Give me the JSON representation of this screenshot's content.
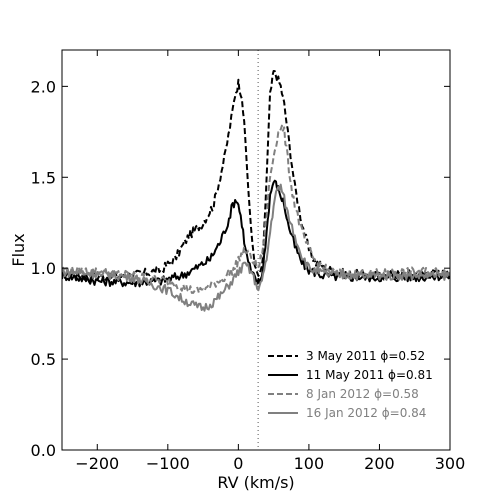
{
  "chart_data": {
    "type": "line",
    "title": "",
    "xlabel": "RV (km/s)",
    "ylabel": "Flux",
    "xlim": [
      -250,
      300
    ],
    "ylim": [
      0.0,
      2.2
    ],
    "xticks": [
      -200,
      -100,
      0,
      100,
      200,
      300
    ],
    "xtick_labels": [
      "−200",
      "−100",
      "0",
      "100",
      "200",
      "300"
    ],
    "yticks": [
      0.0,
      0.5,
      1.0,
      1.5,
      2.0
    ],
    "ytick_labels": [
      "0.0",
      "0.5",
      "1.0",
      "1.5",
      "2.0"
    ],
    "grid": false,
    "legend_position": "lower-right",
    "reference_line": {
      "x": 28,
      "style": "dotted"
    },
    "series": [
      {
        "name": "3 May 2011 ϕ=0.52",
        "color": "#000000",
        "dash": "dashed",
        "x": [
          -250,
          -200,
          -150,
          -110,
          -90,
          -70,
          -50,
          -35,
          -20,
          -10,
          -5,
          0,
          5,
          10,
          18,
          25,
          30,
          35,
          40,
          45,
          50,
          55,
          60,
          65,
          70,
          80,
          90,
          100,
          110,
          130,
          150,
          200,
          250,
          300
        ],
        "y": [
          0.97,
          0.95,
          0.96,
          0.99,
          1.05,
          1.18,
          1.25,
          1.35,
          1.6,
          1.82,
          1.95,
          2.02,
          1.95,
          1.7,
          1.2,
          0.98,
          0.95,
          1.05,
          1.5,
          1.95,
          2.08,
          2.05,
          2.0,
          1.9,
          1.75,
          1.45,
          1.25,
          1.1,
          1.03,
          0.99,
          0.97,
          0.96,
          0.97,
          0.97
        ]
      },
      {
        "name": "11 May 2011 ϕ=0.81",
        "color": "#000000",
        "dash": "solid",
        "x": [
          -250,
          -200,
          -150,
          -110,
          -80,
          -60,
          -40,
          -25,
          -15,
          -8,
          -3,
          0,
          5,
          10,
          18,
          25,
          30,
          35,
          40,
          45,
          50,
          55,
          60,
          65,
          70,
          80,
          90,
          100,
          120,
          150,
          200,
          250,
          300
        ],
        "y": [
          0.96,
          0.93,
          0.92,
          0.93,
          0.96,
          1.0,
          1.05,
          1.15,
          1.25,
          1.35,
          1.38,
          1.35,
          1.25,
          1.1,
          0.98,
          0.93,
          0.92,
          1.0,
          1.2,
          1.4,
          1.48,
          1.45,
          1.4,
          1.35,
          1.25,
          1.12,
          1.03,
          0.99,
          0.96,
          0.95,
          0.95,
          0.95,
          0.96
        ]
      },
      {
        "name": "8 Jan 2012 ϕ=0.58",
        "color": "#808080",
        "dash": "dashed",
        "x": [
          -250,
          -200,
          -150,
          -100,
          -80,
          -60,
          -40,
          -20,
          -5,
          0,
          10,
          20,
          28,
          35,
          40,
          45,
          50,
          55,
          60,
          65,
          70,
          75,
          80,
          90,
          100,
          110,
          130,
          150,
          200,
          250,
          300
        ],
        "y": [
          0.99,
          0.98,
          0.96,
          0.93,
          0.9,
          0.87,
          0.9,
          0.95,
          1.0,
          1.05,
          1.1,
          1.05,
          1.0,
          1.1,
          1.3,
          1.5,
          1.62,
          1.72,
          1.78,
          1.75,
          1.6,
          1.45,
          1.35,
          1.2,
          1.1,
          1.03,
          0.98,
          0.97,
          0.97,
          0.98,
          0.98
        ]
      },
      {
        "name": "16 Jan 2012 ϕ=0.84",
        "color": "#808080",
        "dash": "solid",
        "x": [
          -250,
          -200,
          -150,
          -100,
          -80,
          -60,
          -50,
          -40,
          -25,
          -15,
          -5,
          0,
          10,
          20,
          25,
          30,
          35,
          40,
          45,
          50,
          55,
          60,
          65,
          70,
          80,
          90,
          100,
          120,
          150,
          200,
          250,
          300
        ],
        "y": [
          0.98,
          0.97,
          0.95,
          0.88,
          0.83,
          0.79,
          0.78,
          0.8,
          0.85,
          0.9,
          0.95,
          0.98,
          1.02,
          0.97,
          0.9,
          0.9,
          0.95,
          1.05,
          1.2,
          1.35,
          1.43,
          1.45,
          1.38,
          1.3,
          1.18,
          1.07,
          1.0,
          0.97,
          0.96,
          0.96,
          0.96,
          0.96
        ]
      }
    ]
  }
}
